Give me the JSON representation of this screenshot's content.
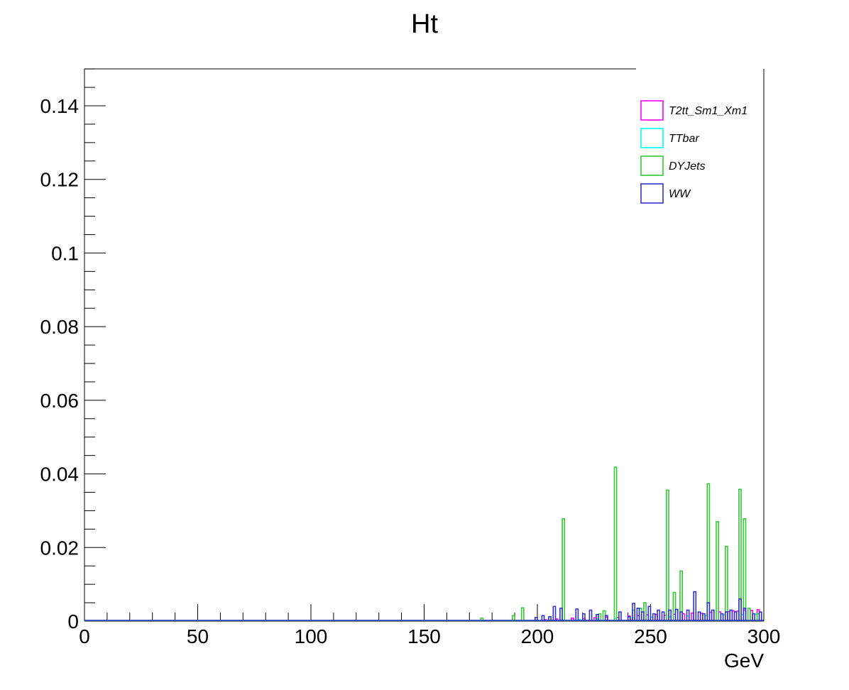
{
  "chart_data": {
    "type": "histogram",
    "title": "Ht",
    "xlabel": "GeV",
    "ylabel": "",
    "xlim": [
      0,
      300
    ],
    "ylim": [
      0,
      0.15
    ],
    "x_ticks": [
      0,
      50,
      100,
      150,
      200,
      250,
      300
    ],
    "y_ticks": [
      0,
      0.02,
      0.04,
      0.06,
      0.08,
      0.1,
      0.12,
      0.14
    ],
    "x_tick_labels": [
      "0",
      "50",
      "100",
      "150",
      "200",
      "250",
      "300"
    ],
    "y_tick_labels": [
      "0",
      "0.02",
      "0.04",
      "0.06",
      "0.08",
      "0.1",
      "0.12",
      "0.14"
    ],
    "bin_width": 1,
    "legend_position": "top-right",
    "series": [
      {
        "name": "T2tt_Sm1_Xm1",
        "color": "#ff00ff",
        "bins": [
          [
            203,
            0.0004
          ],
          [
            208,
            0.0006
          ],
          [
            215,
            0.0008
          ],
          [
            220,
            0.0007
          ],
          [
            225,
            0.0009
          ],
          [
            230,
            0.0011
          ],
          [
            235,
            0.001
          ],
          [
            240,
            0.0014
          ],
          [
            244,
            0.0015
          ],
          [
            248,
            0.0017
          ],
          [
            252,
            0.0018
          ],
          [
            256,
            0.0016
          ],
          [
            260,
            0.0019
          ],
          [
            264,
            0.002
          ],
          [
            268,
            0.0022
          ],
          [
            272,
            0.0021
          ],
          [
            276,
            0.0024
          ],
          [
            280,
            0.0025
          ],
          [
            284,
            0.0026
          ],
          [
            286,
            0.0028
          ],
          [
            288,
            0.0027
          ],
          [
            291,
            0.003
          ],
          [
            294,
            0.0029
          ],
          [
            297,
            0.0031
          ]
        ]
      },
      {
        "name": "TTbar",
        "color": "#00ffff",
        "bins": [
          [
            210,
            0.0003
          ],
          [
            218,
            0.0005
          ],
          [
            226,
            0.0006
          ],
          [
            234,
            0.0008
          ],
          [
            242,
            0.0009
          ],
          [
            250,
            0.0011
          ],
          [
            258,
            0.0012
          ],
          [
            266,
            0.0014
          ],
          [
            274,
            0.0015
          ],
          [
            282,
            0.0017
          ],
          [
            290,
            0.0018
          ],
          [
            296,
            0.0019
          ]
        ]
      },
      {
        "name": "DYJets",
        "color": "#33cc33",
        "bins": [
          [
            175,
            0.0008
          ],
          [
            189,
            0.0015
          ],
          [
            193,
            0.0036
          ],
          [
            211,
            0.0278
          ],
          [
            227,
            0.002
          ],
          [
            229,
            0.0028
          ],
          [
            234,
            0.0418
          ],
          [
            242,
            0.003
          ],
          [
            245,
            0.0035
          ],
          [
            247,
            0.005
          ],
          [
            257,
            0.0356
          ],
          [
            260,
            0.0078
          ],
          [
            263,
            0.0136
          ],
          [
            275,
            0.0373
          ],
          [
            279,
            0.027
          ],
          [
            283,
            0.0203
          ],
          [
            289,
            0.0358
          ],
          [
            291,
            0.0278
          ],
          [
            293,
            0.0035
          ],
          [
            297,
            0.002
          ]
        ]
      },
      {
        "name": "WW",
        "color": "#3333cc",
        "bins": [
          [
            199,
            0.001
          ],
          [
            202,
            0.0015
          ],
          [
            205,
            0.0012
          ],
          [
            207,
            0.004
          ],
          [
            210,
            0.0035
          ],
          [
            217,
            0.0033
          ],
          [
            220,
            0.002
          ],
          [
            223,
            0.003
          ],
          [
            226,
            0.0018
          ],
          [
            230,
            0.0015
          ],
          [
            236,
            0.0025
          ],
          [
            240,
            0.0012
          ],
          [
            242,
            0.0048
          ],
          [
            244,
            0.0035
          ],
          [
            246,
            0.0025
          ],
          [
            249,
            0.004
          ],
          [
            251,
            0.002
          ],
          [
            253,
            0.003
          ],
          [
            255,
            0.0025
          ],
          [
            258,
            0.003
          ],
          [
            261,
            0.0032
          ],
          [
            263,
            0.0025
          ],
          [
            266,
            0.003
          ],
          [
            269,
            0.008
          ],
          [
            271,
            0.0025
          ],
          [
            273,
            0.002
          ],
          [
            275,
            0.005
          ],
          [
            277,
            0.003
          ],
          [
            281,
            0.002
          ],
          [
            283,
            0.0025
          ],
          [
            285,
            0.003
          ],
          [
            287,
            0.0025
          ],
          [
            289,
            0.006
          ],
          [
            291,
            0.0035
          ],
          [
            295,
            0.002
          ],
          [
            298,
            0.0025
          ]
        ]
      }
    ]
  }
}
